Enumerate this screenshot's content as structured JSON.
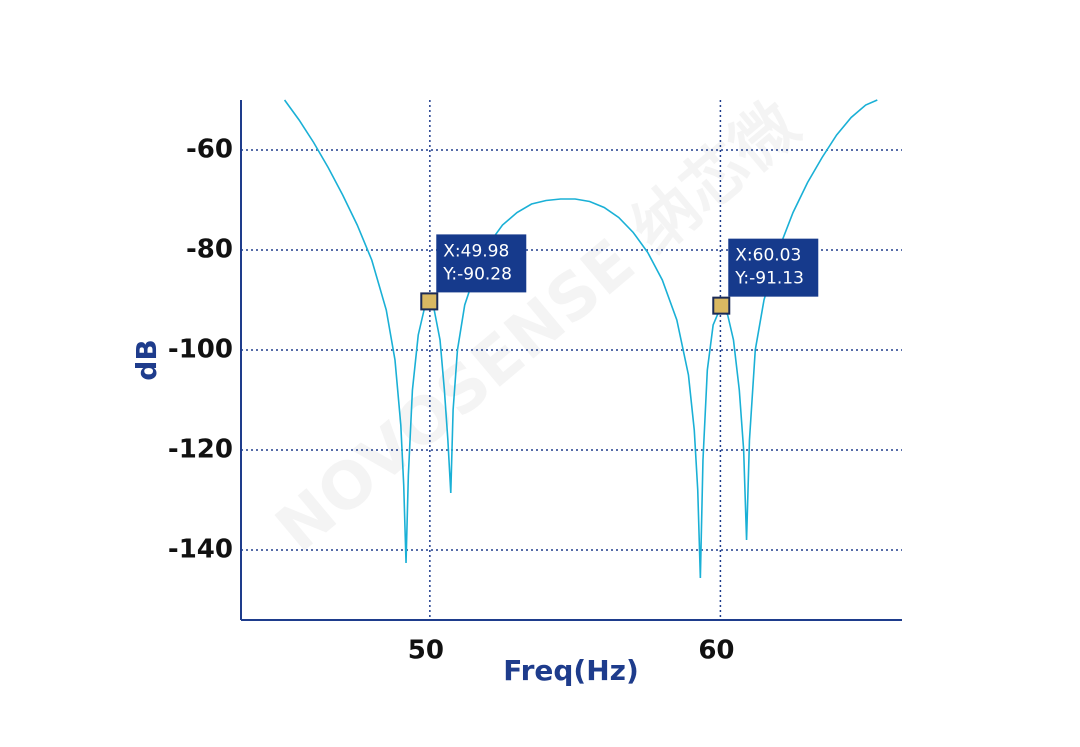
{
  "chart_data": {
    "type": "line",
    "xlabel": "Freq(Hz)",
    "ylabel": "dB",
    "watermark": "NOVOSENSE 纳芯微",
    "color": "#1ab0d6",
    "axis_color": "#1e3c8c",
    "grid": true,
    "xlim": [
      43.5,
      66.25
    ],
    "ylim": [
      -154,
      -50
    ],
    "xticks": [
      50,
      60
    ],
    "yticks": [
      -60,
      -80,
      -100,
      -120,
      -140
    ],
    "x": [
      45.0,
      45.5,
      46.0,
      46.5,
      47.0,
      47.5,
      48.0,
      48.5,
      48.8,
      49.0,
      49.1,
      49.18,
      49.26,
      49.4,
      49.6,
      49.8,
      49.98,
      50.15,
      50.35,
      50.5,
      50.62,
      50.72,
      50.8,
      50.95,
      51.2,
      51.6,
      52.0,
      52.5,
      53.0,
      53.5,
      54.0,
      54.5,
      55.0,
      55.5,
      56.0,
      56.5,
      57.0,
      57.5,
      58.0,
      58.5,
      58.9,
      59.1,
      59.22,
      59.31,
      59.4,
      59.55,
      59.75,
      60.03,
      60.25,
      60.45,
      60.65,
      60.8,
      60.9,
      61.0,
      61.2,
      61.5,
      62.0,
      62.5,
      63.0,
      63.5,
      64.0,
      64.5,
      65.0,
      65.4
    ],
    "values": [
      -50,
      -54,
      -58.5,
      -63.5,
      -69,
      -75,
      -82,
      -92,
      -102,
      -115,
      -127,
      -142.6,
      -125,
      -108,
      -97,
      -92,
      -90.28,
      -92,
      -98,
      -108,
      -118,
      -128.6,
      -112,
      -100,
      -91,
      -84,
      -79,
      -75,
      -72.5,
      -70.8,
      -70.1,
      -69.8,
      -69.8,
      -70.3,
      -71.5,
      -73.5,
      -76.5,
      -80.5,
      -86,
      -94,
      -105,
      -116,
      -128,
      -145.6,
      -122,
      -104,
      -95,
      -91.13,
      -93,
      -98,
      -108,
      -120,
      -138,
      -118,
      -100,
      -90,
      -80,
      -72.5,
      -66.5,
      -61.5,
      -57,
      -53.5,
      -51,
      -50
    ],
    "datatips": [
      {
        "x": 49.98,
        "y": -90.28,
        "x_label": "X:49.98",
        "y_label": "Y:-90.28"
      },
      {
        "x": 60.03,
        "y": -91.13,
        "x_label": "X:60.03",
        "y_label": "Y:-91.13"
      }
    ]
  }
}
